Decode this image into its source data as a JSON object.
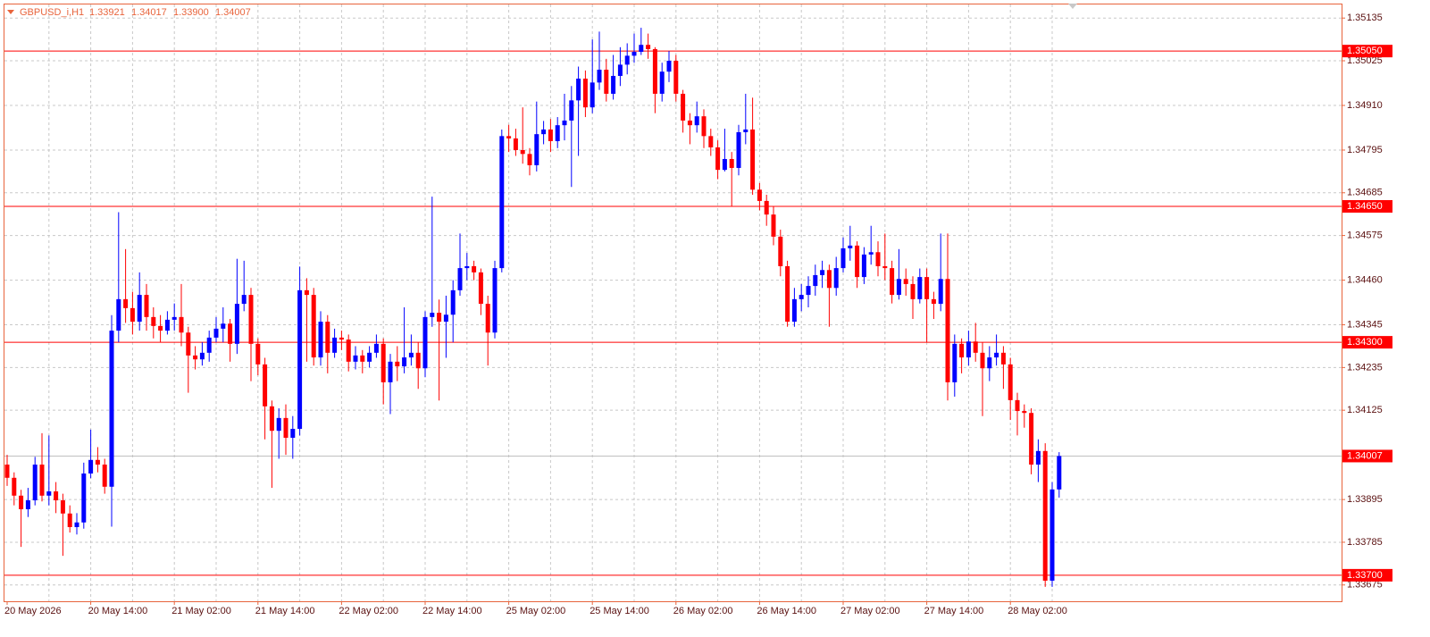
{
  "chart_data": {
    "type": "candlestick",
    "title": "GBPUSD_i,H1",
    "header_values": [
      "1.33921",
      "1.34017",
      "1.33900",
      "1.34007"
    ],
    "bull_color": "#0000ff",
    "bear_color": "#ff0000",
    "level_color": "#ff0000",
    "grid": true,
    "ylim": [
      1.33633,
      1.3517
    ],
    "yticks": [
      1.35135,
      1.35025,
      {
        "value": 1.3491,
        "label": "1.34910"
      },
      1.34795,
      1.34685,
      1.34575,
      {
        "value": 1.3446,
        "label": "1.34460"
      },
      1.34345,
      1.34235,
      1.34125,
      1.33895,
      1.33785,
      1.33675
    ],
    "levels": [
      {
        "value": 1.3505,
        "label": "1.35050"
      },
      {
        "value": 1.3465,
        "label": "1.34650"
      },
      {
        "value": 1.343,
        "label": "1.34300"
      },
      {
        "value": 1.337,
        "label": "1.33700"
      }
    ],
    "categories": [
      "20 May 2026",
      null,
      null,
      null,
      null,
      null,
      null,
      null,
      null,
      null,
      null,
      null,
      "20 May 14:00",
      null,
      null,
      null,
      null,
      null,
      null,
      null,
      null,
      null,
      null,
      null,
      "21 May 02:00",
      null,
      null,
      null,
      null,
      null,
      null,
      null,
      null,
      null,
      null,
      null,
      "21 May 14:00",
      null,
      null,
      null,
      null,
      null,
      null,
      null,
      null,
      null,
      null,
      null,
      "22 May 02:00",
      null,
      null,
      null,
      null,
      null,
      null,
      null,
      null,
      null,
      null,
      null,
      "22 May 14:00",
      null,
      null,
      null,
      null,
      null,
      null,
      null,
      null,
      null,
      null,
      null,
      "25 May 02:00",
      null,
      null,
      null,
      null,
      null,
      null,
      null,
      null,
      null,
      null,
      null,
      "25 May 14:00",
      null,
      null,
      null,
      null,
      null,
      null,
      null,
      null,
      null,
      null,
      null,
      "26 May 02:00",
      null,
      null,
      null,
      null,
      null,
      null,
      null,
      null,
      null,
      null,
      null,
      "26 May 14:00",
      null,
      null,
      null,
      null,
      null,
      null,
      null,
      null,
      null,
      null,
      null,
      "27 May 02:00",
      null,
      null,
      null,
      null,
      null,
      null,
      null,
      null,
      null,
      null,
      null,
      "27 May 14:00",
      null,
      null,
      null,
      null,
      null,
      null,
      null,
      null,
      null,
      null,
      null,
      "28 May 02:00",
      null,
      null,
      null,
      null,
      null,
      null,
      null
    ],
    "candles": [
      [
        1.33985,
        1.3401,
        1.3393,
        1.33951
      ],
      [
        1.33951,
        1.33965,
        1.3388,
        1.33905
      ],
      [
        1.33905,
        1.3392,
        1.33773,
        1.3387
      ],
      [
        1.3387,
        1.33925,
        1.3385,
        1.33893
      ],
      [
        1.33893,
        1.34005,
        1.3388,
        1.33985
      ],
      [
        1.33985,
        1.34066,
        1.3389,
        1.33905
      ],
      [
        1.33905,
        1.3406,
        1.3388,
        1.33916
      ],
      [
        1.33916,
        1.3394,
        1.3386,
        1.33893
      ],
      [
        1.33893,
        1.3391,
        1.3375,
        1.33859
      ],
      [
        1.33859,
        1.3388,
        1.3381,
        1.33824
      ],
      [
        1.33824,
        1.3386,
        1.33805,
        1.33836
      ],
      [
        1.33836,
        1.3399,
        1.3382,
        1.33962
      ],
      [
        1.33962,
        1.34075,
        1.3395,
        1.33997
      ],
      [
        1.33997,
        1.3403,
        1.33965,
        1.33985
      ],
      [
        1.33985,
        1.34,
        1.3391,
        1.33928
      ],
      [
        1.33928,
        1.3437,
        1.33825,
        1.3433
      ],
      [
        1.3433,
        1.34635,
        1.343,
        1.34411
      ],
      [
        1.34411,
        1.3454,
        1.3435,
        1.34388
      ],
      [
        1.34388,
        1.3443,
        1.3432,
        1.34353
      ],
      [
        1.34353,
        1.3448,
        1.3433,
        1.34422
      ],
      [
        1.34422,
        1.3445,
        1.3433,
        1.34365
      ],
      [
        1.34365,
        1.3439,
        1.3431,
        1.34342
      ],
      [
        1.34342,
        1.3437,
        1.343,
        1.3433
      ],
      [
        1.3433,
        1.3438,
        1.3432,
        1.34358
      ],
      [
        1.34358,
        1.344,
        1.3433,
        1.34365
      ],
      [
        1.34365,
        1.3445,
        1.3429,
        1.34325
      ],
      [
        1.34325,
        1.3434,
        1.3417,
        1.34266
      ],
      [
        1.34266,
        1.3429,
        1.3423,
        1.34256
      ],
      [
        1.34256,
        1.343,
        1.3424,
        1.34273
      ],
      [
        1.34273,
        1.3433,
        1.3425,
        1.34312
      ],
      [
        1.34312,
        1.34365,
        1.343,
        1.34335
      ],
      [
        1.34335,
        1.3439,
        1.343,
        1.34348
      ],
      [
        1.34348,
        1.3436,
        1.3425,
        1.34296
      ],
      [
        1.34296,
        1.34515,
        1.3427,
        1.34399
      ],
      [
        1.34399,
        1.3451,
        1.3438,
        1.34422
      ],
      [
        1.34422,
        1.3444,
        1.342,
        1.34296
      ],
      [
        1.34296,
        1.3431,
        1.34215,
        1.34243
      ],
      [
        1.34243,
        1.3426,
        1.3405,
        1.34135
      ],
      [
        1.34135,
        1.3415,
        1.33925,
        1.34072
      ],
      [
        1.34072,
        1.3413,
        1.34,
        1.34105
      ],
      [
        1.34105,
        1.3414,
        1.3401,
        1.34054
      ],
      [
        1.34054,
        1.3411,
        1.34,
        1.34077
      ],
      [
        1.34077,
        1.34495,
        1.3406,
        1.34434
      ],
      [
        1.34434,
        1.34465,
        1.3425,
        1.34422
      ],
      [
        1.34422,
        1.3444,
        1.3424,
        1.34261
      ],
      [
        1.34261,
        1.3438,
        1.3424,
        1.34353
      ],
      [
        1.34353,
        1.3437,
        1.3422,
        1.34273
      ],
      [
        1.34273,
        1.34335,
        1.3426,
        1.34312
      ],
      [
        1.34312,
        1.3433,
        1.3428,
        1.34307
      ],
      [
        1.34307,
        1.3432,
        1.34225,
        1.3425
      ],
      [
        1.3425,
        1.3429,
        1.3423,
        1.34266
      ],
      [
        1.34266,
        1.3428,
        1.3422,
        1.3425
      ],
      [
        1.3425,
        1.3429,
        1.34235,
        1.34273
      ],
      [
        1.34273,
        1.3432,
        1.3426,
        1.34296
      ],
      [
        1.34296,
        1.3431,
        1.3414,
        1.34197
      ],
      [
        1.34197,
        1.3427,
        1.34115,
        1.3425
      ],
      [
        1.3425,
        1.3429,
        1.342,
        1.34238
      ],
      [
        1.34238,
        1.3439,
        1.3422,
        1.34261
      ],
      [
        1.34261,
        1.3432,
        1.3424,
        1.34273
      ],
      [
        1.34273,
        1.343,
        1.3418,
        1.34233
      ],
      [
        1.34233,
        1.3438,
        1.3421,
        1.34365
      ],
      [
        1.34365,
        1.34675,
        1.3434,
        1.34376
      ],
      [
        1.34376,
        1.3441,
        1.3415,
        1.34353
      ],
      [
        1.34353,
        1.3442,
        1.3426,
        1.34371
      ],
      [
        1.34371,
        1.3446,
        1.343,
        1.34434
      ],
      [
        1.34434,
        1.3458,
        1.3442,
        1.34491
      ],
      [
        1.34491,
        1.3453,
        1.3446,
        1.34496
      ],
      [
        1.34496,
        1.3451,
        1.3446,
        1.3448
      ],
      [
        1.3448,
        1.3449,
        1.3437,
        1.34399
      ],
      [
        1.34399,
        1.3442,
        1.3424,
        1.34325
      ],
      [
        1.34325,
        1.3451,
        1.3431,
        1.34491
      ],
      [
        1.34491,
        1.34848,
        1.3448,
        1.34831
      ],
      [
        1.34831,
        1.3486,
        1.3479,
        1.34825
      ],
      [
        1.34825,
        1.3485,
        1.3478,
        1.34795
      ],
      [
        1.34795,
        1.34905,
        1.3476,
        1.34785
      ],
      [
        1.34785,
        1.348,
        1.3473,
        1.34756
      ],
      [
        1.34756,
        1.3492,
        1.3474,
        1.34836
      ],
      [
        1.34836,
        1.3487,
        1.3481,
        1.34848
      ],
      [
        1.34848,
        1.34875,
        1.3479,
        1.34818
      ],
      [
        1.34818,
        1.3488,
        1.348,
        1.34859
      ],
      [
        1.34859,
        1.3494,
        1.3482,
        1.34871
      ],
      [
        1.34871,
        1.3496,
        1.347,
        1.34923
      ],
      [
        1.34923,
        1.3501,
        1.3478,
        1.34979
      ],
      [
        1.34979,
        1.35,
        1.3488,
        1.34905
      ],
      [
        1.34905,
        1.3508,
        1.3489,
        1.34969
      ],
      [
        1.34969,
        1.351,
        1.3495,
        1.35002
      ],
      [
        1.35002,
        1.3503,
        1.3492,
        1.3494
      ],
      [
        1.3494,
        1.3504,
        1.34925,
        1.34986
      ],
      [
        1.34986,
        1.3506,
        1.3496,
        1.35015
      ],
      [
        1.35015,
        1.3507,
        1.3499,
        1.35038
      ],
      [
        1.35038,
        1.35095,
        1.3502,
        1.35048
      ],
      [
        1.35048,
        1.3511,
        1.3504,
        1.35066
      ],
      [
        1.35066,
        1.35095,
        1.3503,
        1.35055
      ],
      [
        1.35055,
        1.3506,
        1.3489,
        1.3494
      ],
      [
        1.3494,
        1.3502,
        1.3492,
        1.34997
      ],
      [
        1.34997,
        1.3505,
        1.3497,
        1.35025
      ],
      [
        1.35025,
        1.3504,
        1.3492,
        1.3494
      ],
      [
        1.3494,
        1.3495,
        1.3484,
        1.34871
      ],
      [
        1.34871,
        1.3489,
        1.3481,
        1.34859
      ],
      [
        1.34859,
        1.3492,
        1.3484,
        1.34882
      ],
      [
        1.34882,
        1.349,
        1.348,
        1.34831
      ],
      [
        1.34831,
        1.3485,
        1.3478,
        1.34802
      ],
      [
        1.34802,
        1.3482,
        1.3472,
        1.34744
      ],
      [
        1.34744,
        1.3485,
        1.3474,
        1.34772
      ],
      [
        1.34772,
        1.3479,
        1.3465,
        1.34749
      ],
      [
        1.34749,
        1.3486,
        1.3473,
        1.34841
      ],
      [
        1.34841,
        1.3494,
        1.3481,
        1.34848
      ],
      [
        1.34848,
        1.3493,
        1.3468,
        1.34693
      ],
      [
        1.34693,
        1.3471,
        1.3464,
        1.34664
      ],
      [
        1.34664,
        1.3468,
        1.346,
        1.34629
      ],
      [
        1.34629,
        1.3465,
        1.3455,
        1.34572
      ],
      [
        1.34572,
        1.3459,
        1.3447,
        1.34496
      ],
      [
        1.34496,
        1.3451,
        1.3434,
        1.34353
      ],
      [
        1.34353,
        1.3444,
        1.3434,
        1.34411
      ],
      [
        1.34411,
        1.3445,
        1.3438,
        1.34422
      ],
      [
        1.34422,
        1.3447,
        1.3439,
        1.34445
      ],
      [
        1.34445,
        1.345,
        1.3442,
        1.34473
      ],
      [
        1.34473,
        1.3451,
        1.3444,
        1.34486
      ],
      [
        1.34486,
        1.345,
        1.3434,
        1.3444
      ],
      [
        1.3444,
        1.3452,
        1.3442,
        1.34491
      ],
      [
        1.34491,
        1.3457,
        1.3448,
        1.34542
      ],
      [
        1.34542,
        1.346,
        1.3451,
        1.34549
      ],
      [
        1.34549,
        1.3456,
        1.3444,
        1.34468
      ],
      [
        1.34468,
        1.34545,
        1.3445,
        1.34526
      ],
      [
        1.34526,
        1.346,
        1.345,
        1.34532
      ],
      [
        1.34532,
        1.3456,
        1.3447,
        1.34496
      ],
      [
        1.34496,
        1.3458,
        1.3446,
        1.34491
      ],
      [
        1.34491,
        1.3451,
        1.344,
        1.34422
      ],
      [
        1.34422,
        1.3454,
        1.3441,
        1.34463
      ],
      [
        1.34463,
        1.3449,
        1.3442,
        1.3445
      ],
      [
        1.3445,
        1.3447,
        1.3436,
        1.34411
      ],
      [
        1.34411,
        1.3449,
        1.344,
        1.34468
      ],
      [
        1.34468,
        1.3449,
        1.343,
        1.34411
      ],
      [
        1.34411,
        1.3443,
        1.3436,
        1.34399
      ],
      [
        1.34399,
        1.3458,
        1.3438,
        1.34463
      ],
      [
        1.34463,
        1.3458,
        1.3415,
        1.34197
      ],
      [
        1.34197,
        1.3432,
        1.3416,
        1.34296
      ],
      [
        1.34296,
        1.3431,
        1.3422,
        1.34261
      ],
      [
        1.34261,
        1.3433,
        1.3424,
        1.34302
      ],
      [
        1.34302,
        1.3435,
        1.3425,
        1.34273
      ],
      [
        1.34273,
        1.343,
        1.3411,
        1.34233
      ],
      [
        1.34233,
        1.3429,
        1.342,
        1.34261
      ],
      [
        1.34261,
        1.3432,
        1.3424,
        1.34273
      ],
      [
        1.34273,
        1.3429,
        1.3418,
        1.34243
      ],
      [
        1.34243,
        1.3426,
        1.341,
        1.34151
      ],
      [
        1.34151,
        1.3417,
        1.3406,
        1.34123
      ],
      [
        1.34123,
        1.3414,
        1.3408,
        1.34118
      ],
      [
        1.34118,
        1.3413,
        1.3396,
        1.33985
      ],
      [
        1.33985,
        1.3405,
        1.3394,
        1.3402
      ],
      [
        1.3402,
        1.3404,
        1.3367,
        1.33686
      ],
      [
        1.33686,
        1.3394,
        1.3367,
        1.33921
      ],
      [
        1.33921,
        1.34017,
        1.339,
        1.34007
      ]
    ]
  }
}
